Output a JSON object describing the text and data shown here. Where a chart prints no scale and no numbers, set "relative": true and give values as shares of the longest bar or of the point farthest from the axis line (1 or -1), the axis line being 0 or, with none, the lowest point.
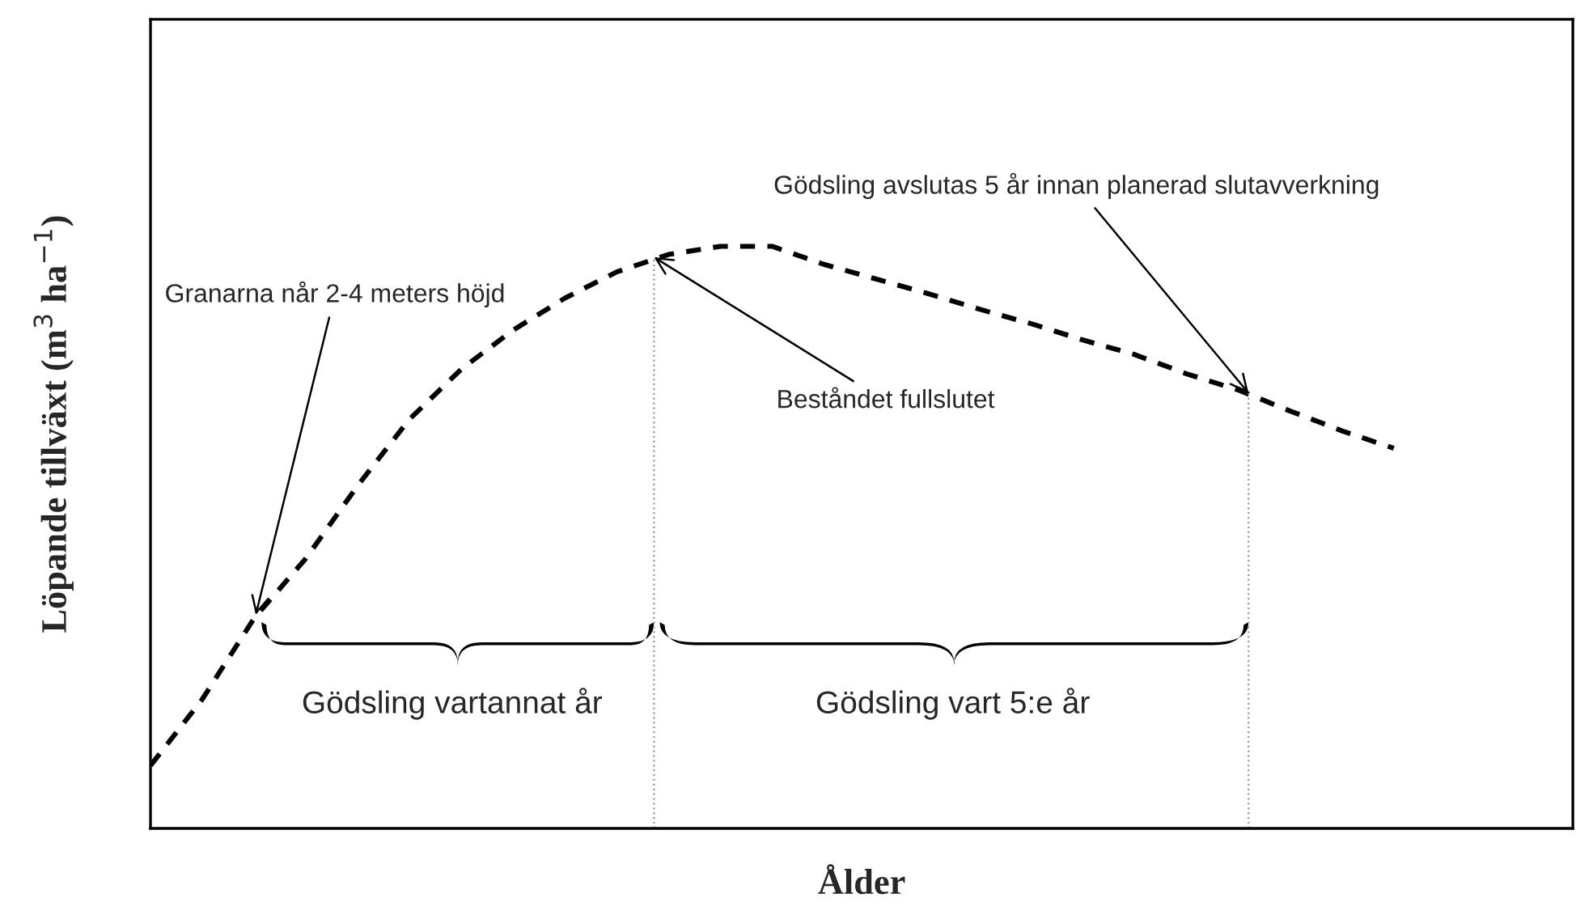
{
  "chart_data": {
    "type": "line",
    "relative": true,
    "xlabel": "Ålder",
    "ylabel": "Löpande tillväxt (m$^{3}$ ha$^{−1}$)",
    "categories": [
      null,
      null,
      null,
      null,
      null,
      null,
      null,
      null,
      null,
      null,
      null,
      null,
      null,
      null,
      null,
      null,
      null,
      null,
      null,
      null,
      null,
      null,
      null,
      null,
      null
    ],
    "tick_labels": false,
    "series": [
      {
        "color": "#000000",
        "line_style": "dashed",
        "values": [
          0.108,
          0.222,
          0.361,
          0.464,
          0.589,
          0.703,
          0.789,
          0.856,
          0.911,
          0.956,
          0.986,
          1,
          1,
          0.969,
          0.944,
          0.919,
          0.892,
          0.867,
          0.839,
          0.814,
          0.781,
          0.753,
          0.717,
          0.683,
          0.653
        ]
      }
    ],
    "annotations": [
      "Granarna når 2-4 meters höjd",
      "Beståndet fullslutet",
      "Gödsling avslutas 5 år innan planerad slutavverkning",
      "Gödsling vartannat år",
      "Gödsling vart 5:e år"
    ],
    "grid": false,
    "legend": false
  }
}
